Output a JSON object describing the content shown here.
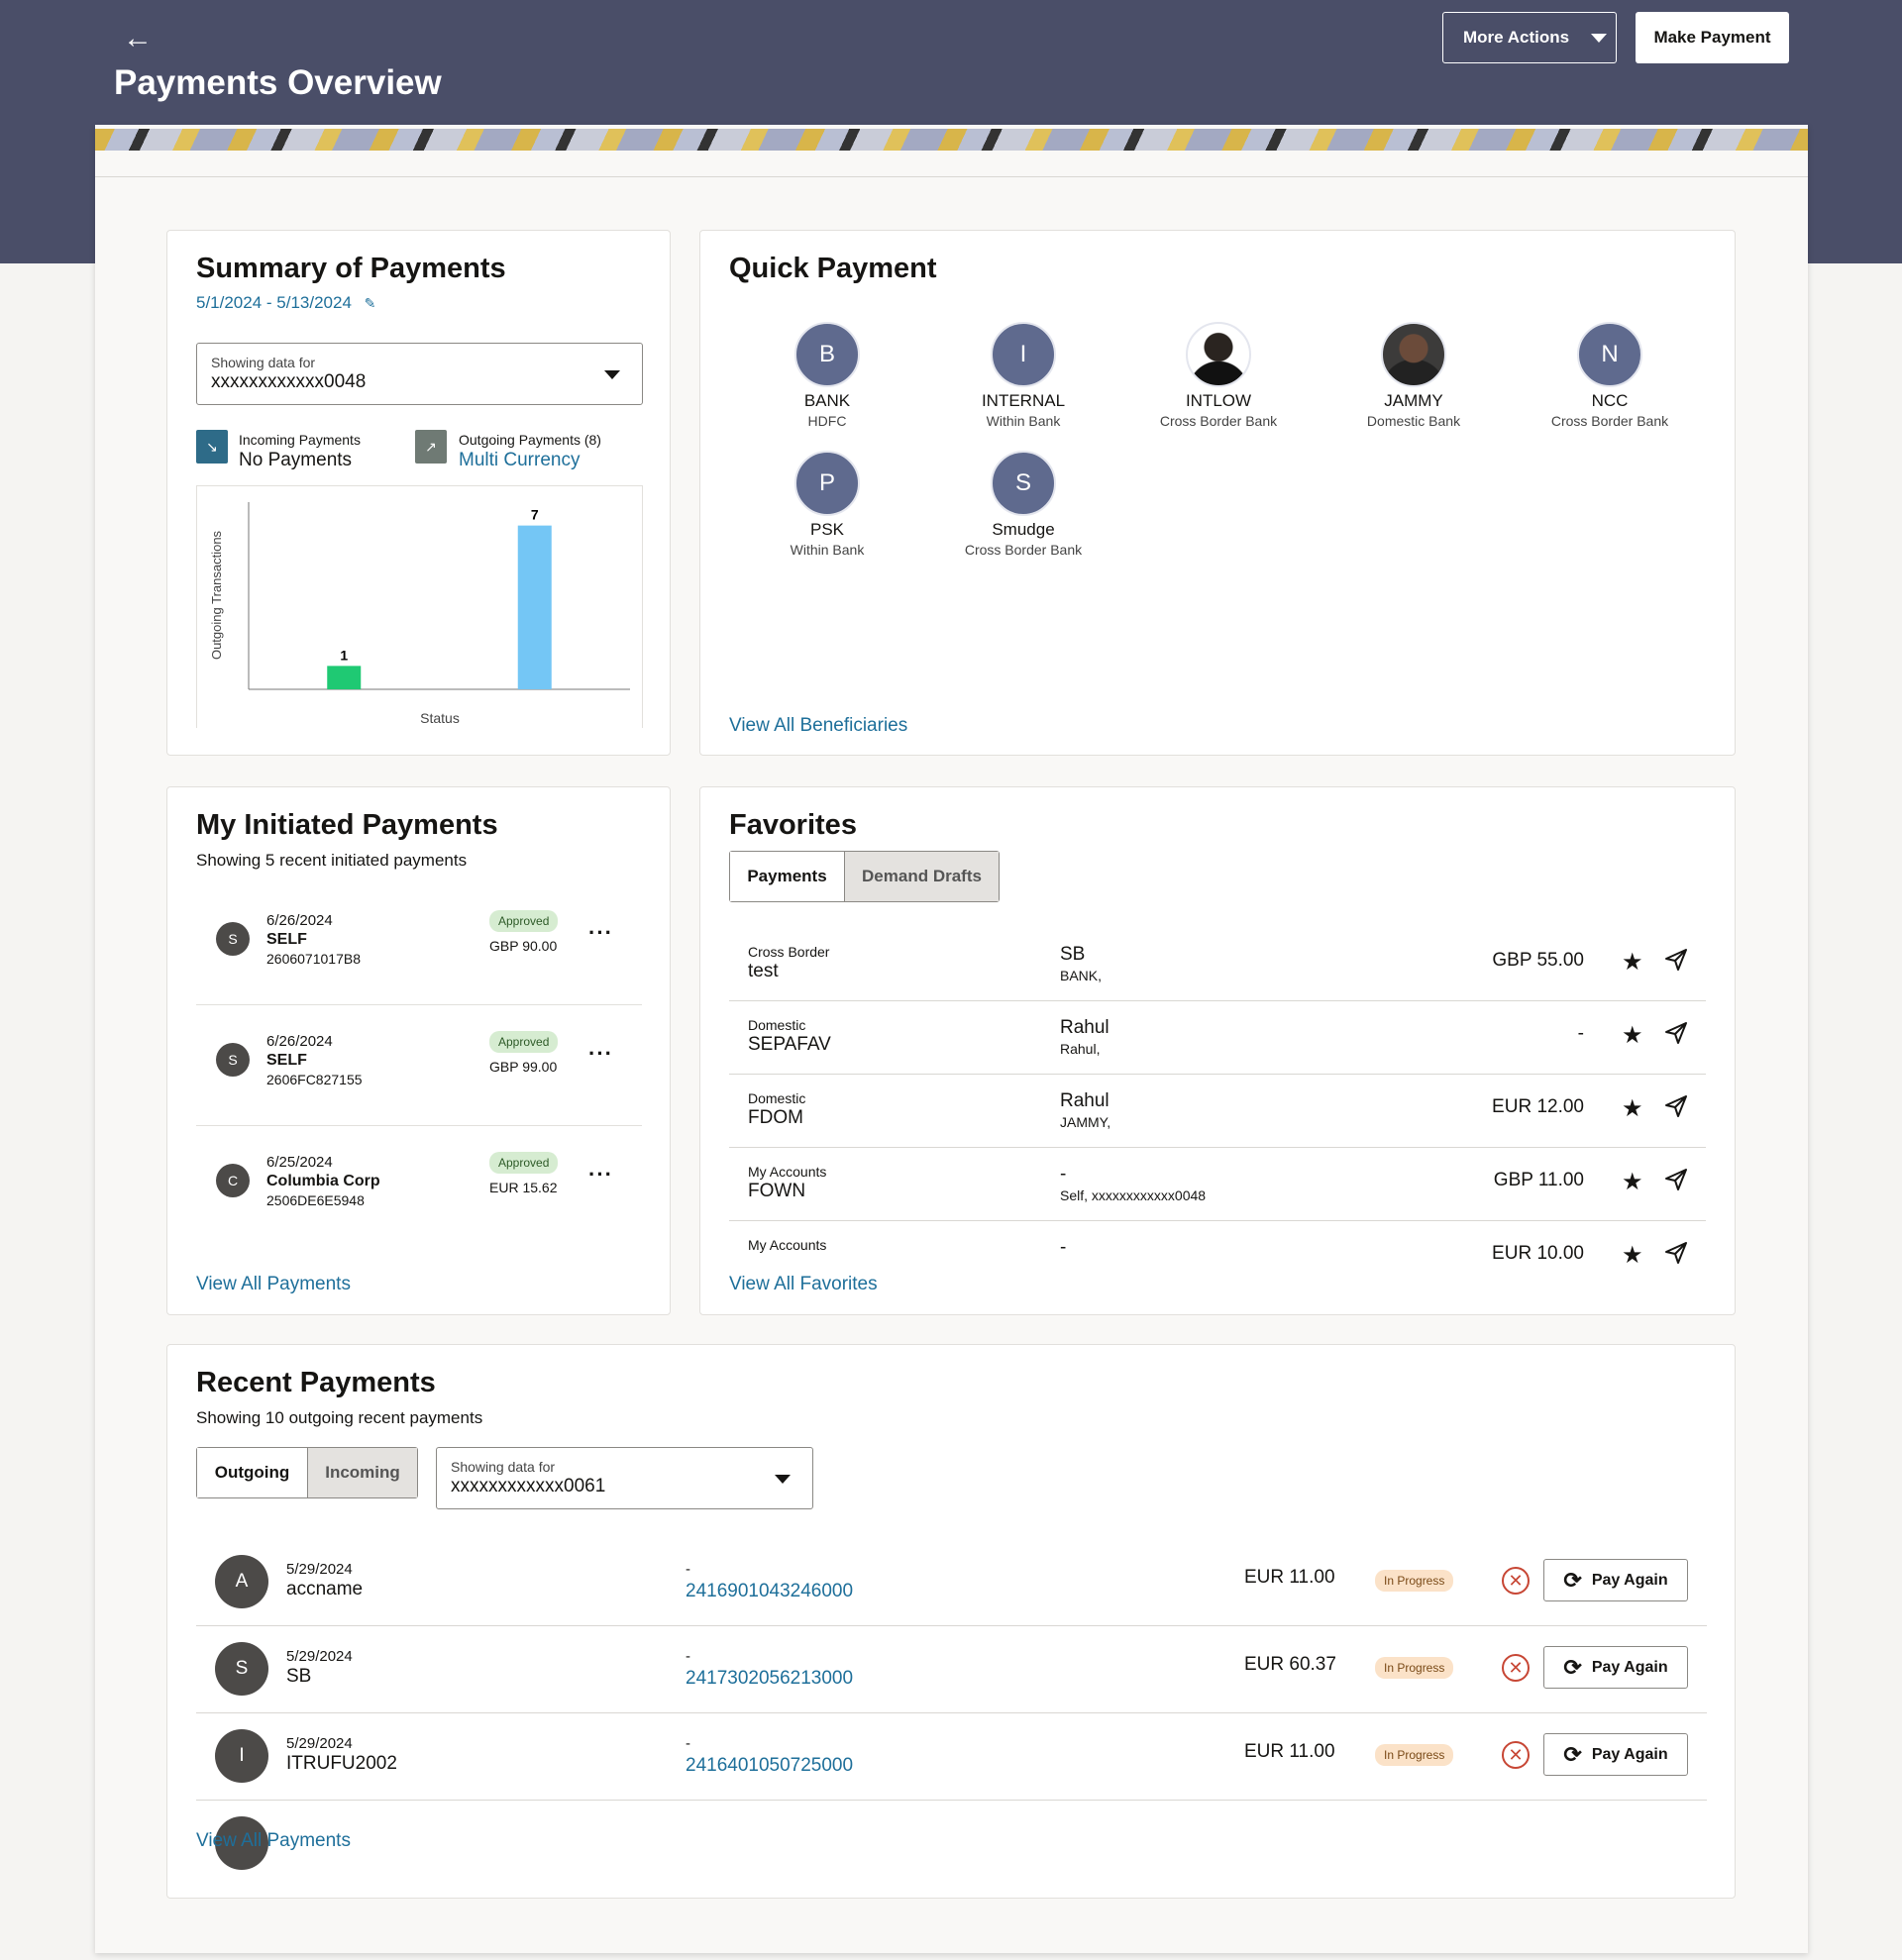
{
  "header": {
    "back_icon": "arrow-left-icon",
    "title": "Payments Overview",
    "more_actions_label": "More Actions",
    "make_payment_label": "Make Payment"
  },
  "summary": {
    "title": "Summary of Payments",
    "date_range": "5/1/2024 - 5/13/2024",
    "edit_icon": "pencil-icon",
    "select_label": "Showing data for",
    "select_value": "xxxxxxxxxxxx0048",
    "incoming_label": "Incoming Payments",
    "incoming_value": "No Payments",
    "outgoing_label": "Outgoing Payments (8)",
    "outgoing_value": "Multi Currency",
    "chart_data": {
      "type": "bar",
      "categories": [
        "",
        ""
      ],
      "values": [
        1,
        7
      ],
      "colors": [
        "#1fc973",
        "#74c6f5"
      ],
      "title": "",
      "xlabel": "Status",
      "ylabel": "Outgoing Transactions",
      "ylim": [
        0,
        8
      ]
    }
  },
  "quick_payment": {
    "title": "Quick Payment",
    "beneficiaries": [
      {
        "initial": "B",
        "name": "BANK",
        "type": "HDFC"
      },
      {
        "initial": "I",
        "name": "INTERNAL",
        "type": "Within Bank"
      },
      {
        "initial": "",
        "name": "INTLOW",
        "type": "Cross Border Bank"
      },
      {
        "initial": "",
        "name": "JAMMY",
        "type": "Domestic Bank"
      },
      {
        "initial": "N",
        "name": "NCC",
        "type": "Cross Border Bank"
      },
      {
        "initial": "P",
        "name": "PSK",
        "type": "Within Bank"
      },
      {
        "initial": "S",
        "name": "Smudge",
        "type": "Cross Border Bank"
      }
    ],
    "view_all": "View All Beneficiaries"
  },
  "initiated": {
    "title": "My Initiated Payments",
    "subtitle": "Showing 5 recent initiated payments",
    "items": [
      {
        "initial": "S",
        "date": "6/26/2024",
        "name": "SELF",
        "ref": "2606071017B8",
        "status": "Approved",
        "amount": "GBP 90.00"
      },
      {
        "initial": "S",
        "date": "6/26/2024",
        "name": "SELF",
        "ref": "2606FC827155",
        "status": "Approved",
        "amount": "GBP 99.00"
      },
      {
        "initial": "C",
        "date": "6/25/2024",
        "name": "Columbia Corp",
        "ref": "2506DE6E5948",
        "status": "Approved",
        "amount": "EUR 15.62"
      }
    ],
    "more_icon": "ellipsis-icon",
    "view_all": "View All Payments"
  },
  "favorites": {
    "title": "Favorites",
    "tab_payments": "Payments",
    "tab_drafts": "Demand Drafts",
    "items": [
      {
        "type": "Cross Border",
        "name": "test",
        "beneficiary": "SB",
        "detail": "BANK,",
        "amount": "GBP 55.00"
      },
      {
        "type": "Domestic",
        "name": "SEPAFAV",
        "beneficiary": "Rahul",
        "detail": "Rahul,",
        "amount": "-"
      },
      {
        "type": "Domestic",
        "name": "FDOM",
        "beneficiary": "Rahul",
        "detail": "JAMMY,",
        "amount": "EUR 12.00"
      },
      {
        "type": "My Accounts",
        "name": "FOWN",
        "beneficiary": "-",
        "detail": "Self, xxxxxxxxxxxx0048",
        "amount": "GBP 11.00"
      },
      {
        "type": "My Accounts",
        "name": "",
        "beneficiary": "-",
        "detail": "",
        "amount": "EUR 10.00"
      }
    ],
    "star_icon": "star-icon",
    "send_icon": "send-icon",
    "view_all": "View All Favorites"
  },
  "recent": {
    "title": "Recent Payments",
    "subtitle": "Showing 10 outgoing recent payments",
    "tab_outgoing": "Outgoing",
    "tab_incoming": "Incoming",
    "select_label": "Showing data for",
    "select_value": "xxxxxxxxxxxx0061",
    "items": [
      {
        "initial": "A",
        "date": "5/29/2024",
        "name": "accname",
        "dash": "-",
        "ref": "2416901043246000",
        "amount": "EUR 11.00",
        "status": "In Progress",
        "action": "Pay Again"
      },
      {
        "initial": "S",
        "date": "5/29/2024",
        "name": "SB",
        "dash": "-",
        "ref": "2417302056213000",
        "amount": "EUR 60.37",
        "status": "In Progress",
        "action": "Pay Again"
      },
      {
        "initial": "I",
        "date": "5/29/2024",
        "name": "ITRUFU2002",
        "dash": "-",
        "ref": "2416401050725000",
        "amount": "EUR 11.00",
        "status": "In Progress",
        "action": "Pay Again"
      }
    ],
    "cancel_icon": "cancel-icon",
    "refresh_icon": "refresh-icon",
    "view_all": "View All Payments"
  }
}
